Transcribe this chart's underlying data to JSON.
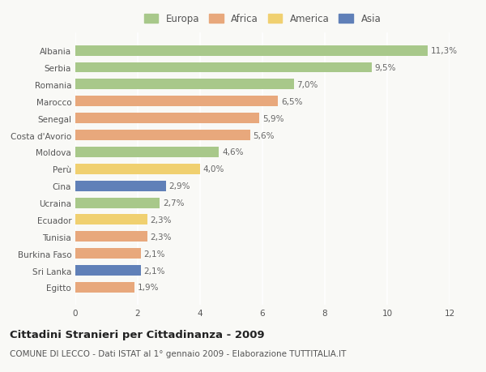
{
  "countries": [
    "Albania",
    "Serbia",
    "Romania",
    "Marocco",
    "Senegal",
    "Costa d'Avorio",
    "Moldova",
    "Perù",
    "Cina",
    "Ucraina",
    "Ecuador",
    "Tunisia",
    "Burkina Faso",
    "Sri Lanka",
    "Egitto"
  ],
  "values": [
    11.3,
    9.5,
    7.0,
    6.5,
    5.9,
    5.6,
    4.6,
    4.0,
    2.9,
    2.7,
    2.3,
    2.3,
    2.1,
    2.1,
    1.9
  ],
  "labels": [
    "11,3%",
    "9,5%",
    "7,0%",
    "6,5%",
    "5,9%",
    "5,6%",
    "4,6%",
    "4,0%",
    "2,9%",
    "2,7%",
    "2,3%",
    "2,3%",
    "2,1%",
    "2,1%",
    "1,9%"
  ],
  "continents": [
    "Europa",
    "Europa",
    "Europa",
    "Africa",
    "Africa",
    "Africa",
    "Europa",
    "America",
    "Asia",
    "Europa",
    "America",
    "Africa",
    "Africa",
    "Asia",
    "Africa"
  ],
  "colors": {
    "Europa": "#a8c88a",
    "Africa": "#e8a87c",
    "America": "#f0d070",
    "Asia": "#6080b8"
  },
  "xlim": [
    0,
    12
  ],
  "xticks": [
    0,
    2,
    4,
    6,
    8,
    10,
    12
  ],
  "title": "Cittadini Stranieri per Cittadinanza - 2009",
  "subtitle": "COMUNE DI LECCO - Dati ISTAT al 1° gennaio 2009 - Elaborazione TUTTITALIA.IT",
  "bg_color": "#f9f9f6",
  "bar_height": 0.62,
  "label_fontsize": 7.5,
  "tick_fontsize": 7.5,
  "title_fontsize": 9.5,
  "subtitle_fontsize": 7.5,
  "legend_order": [
    "Europa",
    "Africa",
    "America",
    "Asia"
  ]
}
